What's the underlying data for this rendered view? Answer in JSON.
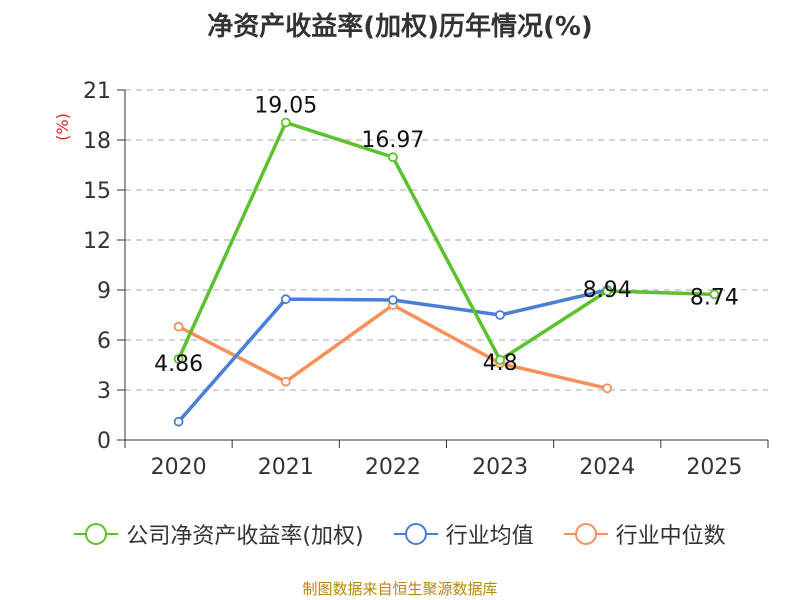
{
  "chart_data": {
    "type": "line",
    "title": "净资产收益率(加权)历年情况(%)",
    "ylabel": "(%)",
    "xlabel": "",
    "categories": [
      "2020",
      "2021",
      "2022",
      "2023",
      "2024",
      "2025"
    ],
    "ylim": [
      0,
      21
    ],
    "yticks": [
      0,
      3,
      6,
      9,
      12,
      15,
      18,
      21
    ],
    "grid": true,
    "legend_position": "bottom",
    "series": [
      {
        "name": "公司净资产收益率(加权)",
        "color": "#5cc12e",
        "values": [
          4.86,
          19.05,
          16.97,
          4.8,
          8.94,
          8.74
        ],
        "labels": [
          "4.86",
          "19.05",
          "16.97",
          "4.8",
          "8.94",
          "8.74"
        ]
      },
      {
        "name": "行业均值",
        "color": "#4a7fd8",
        "values": [
          1.1,
          8.45,
          8.4,
          7.5,
          9.0,
          null
        ]
      },
      {
        "name": "行业中位数",
        "color": "#f7905a",
        "values": [
          6.8,
          3.5,
          8.1,
          4.6,
          3.1,
          null
        ]
      }
    ]
  },
  "source": "制图数据来自恒生聚源数据库"
}
